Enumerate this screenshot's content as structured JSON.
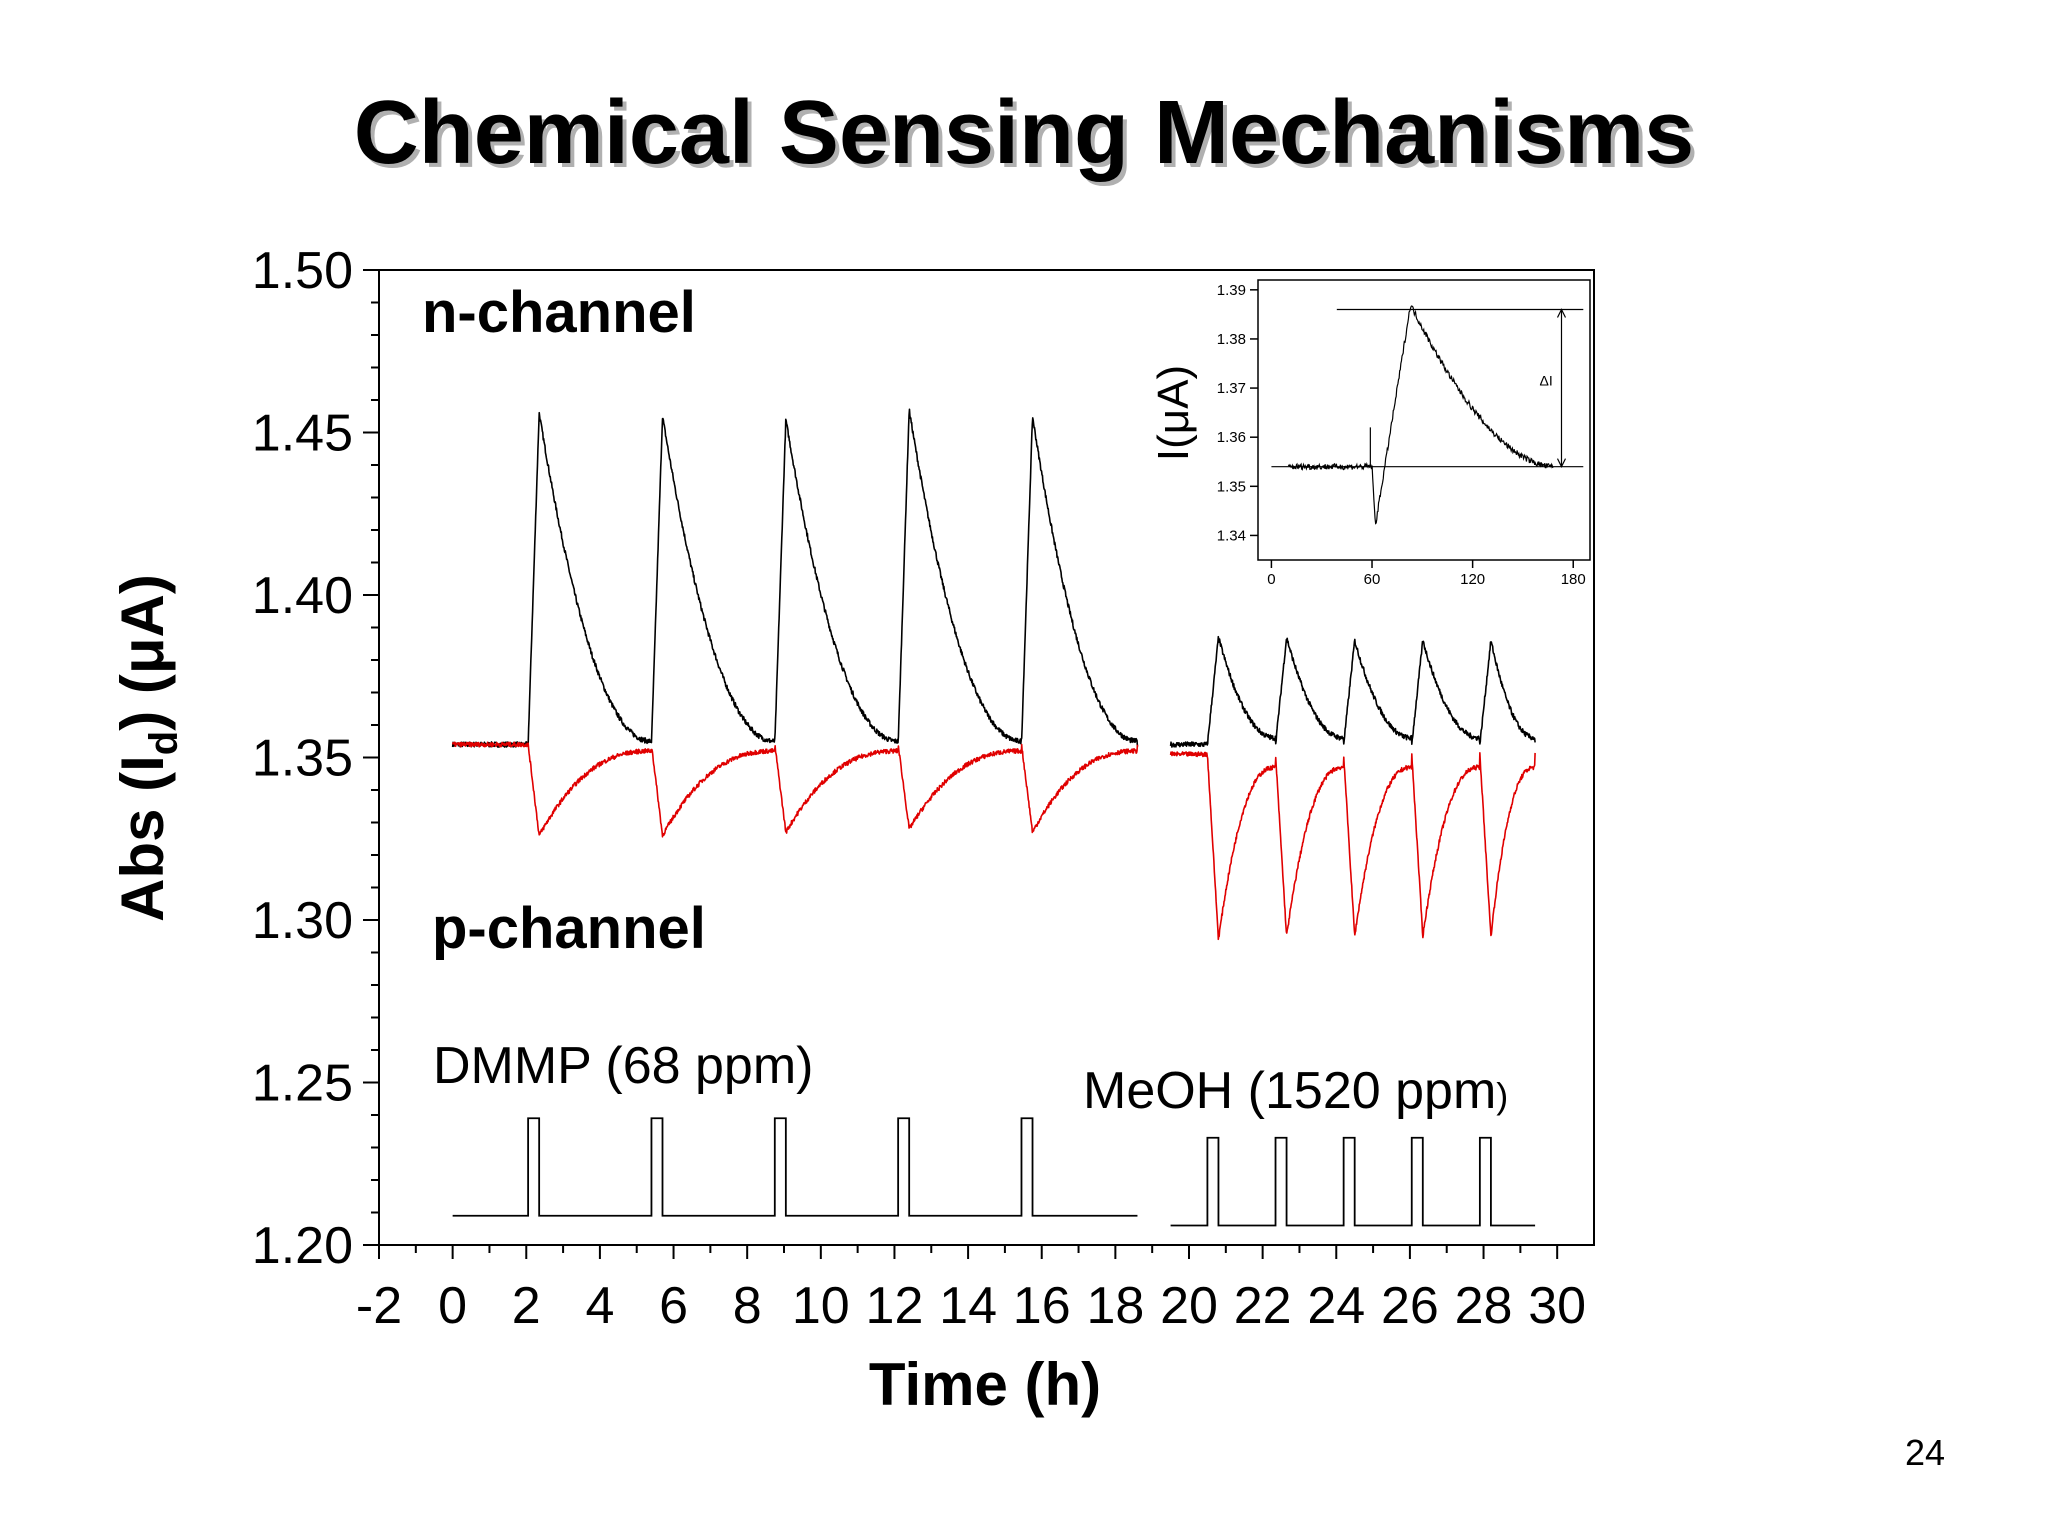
{
  "slide": {
    "title": "Chemical Sensing Mechanisms",
    "page_number": "24"
  },
  "chart_data": {
    "type": "line",
    "xlabel": "Time (h)",
    "ylabel": "Abs (I",
    "ylabel_sub": "d",
    "ylabel_rest": ") (μA)",
    "xlim": [
      -2,
      31
    ],
    "ylim": [
      1.2,
      1.5
    ],
    "xticks": [
      -2,
      0,
      2,
      4,
      6,
      8,
      10,
      12,
      14,
      16,
      18,
      20,
      22,
      24,
      26,
      28,
      30
    ],
    "yticks": [
      1.2,
      1.25,
      1.3,
      1.35,
      1.4,
      1.45,
      1.5
    ],
    "series": [
      {
        "name": "n-channel",
        "color": "#000000",
        "segments": [
          {
            "t_start": 0,
            "t_end": 18.6,
            "baseline": 1.354,
            "onsets": [
              2.05,
              5.4,
              8.75,
              12.1,
              15.45
            ],
            "peaks": [
              1.456,
              1.455,
              1.454,
              1.457,
              1.455
            ],
            "decay_end": 1.355
          },
          {
            "t_start": 19.5,
            "t_end": 29.4,
            "baseline": 1.354,
            "onsets": [
              20.5,
              22.35,
              24.2,
              26.05,
              27.9
            ],
            "peaks": [
              1.387,
              1.387,
              1.386,
              1.386,
              1.386
            ],
            "decay_end": 1.356
          }
        ]
      },
      {
        "name": "p-channel",
        "color": "#e00000",
        "segments": [
          {
            "t_start": 0,
            "t_end": 18.6,
            "baseline": 1.354,
            "onsets": [
              2.05,
              5.4,
              8.75,
              12.1,
              15.45
            ],
            "troughs": [
              1.326,
              1.326,
              1.327,
              1.328,
              1.327
            ],
            "recover_end": 1.352
          },
          {
            "t_start": 19.5,
            "t_end": 29.4,
            "baseline": 1.351,
            "onsets": [
              20.5,
              22.35,
              24.2,
              26.05,
              27.9
            ],
            "troughs": [
              1.294,
              1.295,
              1.295,
              1.295,
              1.295
            ],
            "recover_end": 1.347
          }
        ]
      },
      {
        "name": "gas pulses",
        "color": "#000000",
        "segments": [
          {
            "t_start": 0,
            "t_end": 18.6,
            "low": 1.209,
            "high": 1.239,
            "pulses": [
              [
                2.05,
                2.35
              ],
              [
                5.4,
                5.7
              ],
              [
                8.75,
                9.05
              ],
              [
                12.1,
                12.4
              ],
              [
                15.45,
                15.75
              ]
            ]
          },
          {
            "t_start": 19.5,
            "t_end": 29.4,
            "low": 1.206,
            "high": 1.233,
            "pulses": [
              [
                20.5,
                20.8
              ],
              [
                22.35,
                22.65
              ],
              [
                24.2,
                24.5
              ],
              [
                26.05,
                26.35
              ],
              [
                27.9,
                28.2
              ]
            ]
          }
        ]
      }
    ],
    "annotations": {
      "n_channel": "n-channel",
      "p_channel": "p-channel",
      "dmmp": "DMMP (68 ppm)",
      "meoh": "MeOH (1520 ppm",
      "meoh_paren": ")"
    },
    "inset": {
      "type": "line",
      "ylabel": "I(μA)",
      "xlim": [
        -8,
        190
      ],
      "ylim": [
        1.335,
        1.392
      ],
      "xticks": [
        0,
        60,
        120,
        180
      ],
      "yticks": [
        1.34,
        1.35,
        1.36,
        1.37,
        1.38,
        1.39
      ],
      "baseline": 1.354,
      "onset": 60,
      "dip_time": 62,
      "dip": 1.342,
      "peak_time": 83,
      "peak": 1.387,
      "end_time": 168,
      "end": 1.354,
      "delta_label": "ΔI",
      "ref_lines": [
        1.386,
        1.354
      ]
    }
  }
}
